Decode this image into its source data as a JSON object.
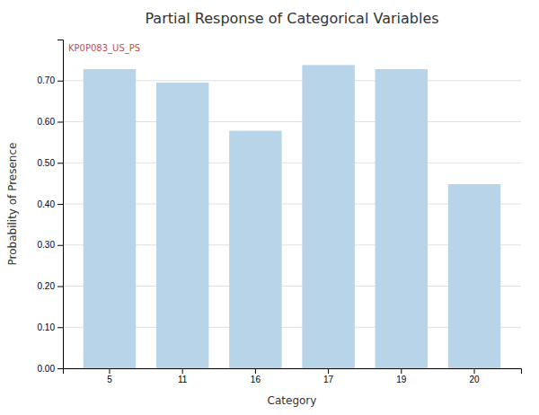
{
  "chart_data": {
    "type": "bar",
    "title": "Partial Response of Categorical Variables",
    "x_label": "Category",
    "y_label": "Probability of Presence",
    "categories": [
      "5",
      "11",
      "16",
      "17",
      "19",
      "20"
    ],
    "values": [
      0.728,
      0.695,
      0.578,
      0.738,
      0.728,
      0.448
    ],
    "color": "#b8d4e8",
    "ylim": [
      0,
      0.8
    ],
    "yticks": [
      {
        "value": 0.0,
        "label": "0.00"
      },
      {
        "value": 0.1,
        "label": "0.10"
      },
      {
        "value": 0.2,
        "label": "0.20"
      },
      {
        "value": 0.3,
        "label": "0.30"
      },
      {
        "value": 0.4,
        "label": "0.40"
      },
      {
        "value": 0.5,
        "label": "0.50"
      },
      {
        "value": 0.6,
        "label": "0.60"
      },
      {
        "value": 0.7,
        "label": "0.70"
      }
    ],
    "grid": true,
    "annotations": [
      {
        "text": "KP0P083_US_PS"
      }
    ]
  }
}
